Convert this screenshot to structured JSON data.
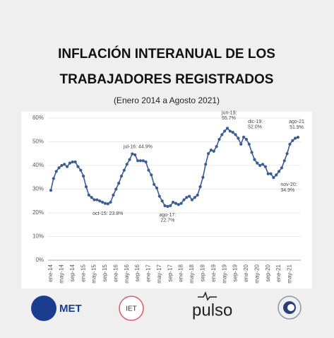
{
  "chart_data": {
    "type": "line",
    "title_lines": [
      "INFLACIÓN INTERANUAL DE LOS",
      "TRABAJADORES REGISTRADOS"
    ],
    "subtitle": "(Enero 2014 a Agosto 2021)",
    "categories": [
      "ene-14",
      null,
      null,
      null,
      "may-14",
      null,
      null,
      null,
      "sep-14",
      null,
      null,
      null,
      "ene-15",
      null,
      null,
      null,
      "may-15",
      null,
      null,
      null,
      "sep-15",
      null,
      null,
      null,
      "ene-16",
      null,
      null,
      null,
      "may-16",
      null,
      null,
      null,
      "sep-16",
      null,
      null,
      null,
      "ene-17",
      null,
      null,
      null,
      "may-17",
      null,
      null,
      null,
      "sep-17",
      null,
      null,
      null,
      "ene-18",
      null,
      null,
      null,
      "may-18",
      null,
      null,
      null,
      "sep-18",
      null,
      null,
      null,
      "ene-19",
      null,
      null,
      null,
      "may-19",
      null,
      null,
      null,
      "sep-19",
      null,
      null,
      null,
      "ene-20",
      null,
      null,
      null,
      "may-20",
      null,
      null,
      null,
      "sep-20",
      null,
      null,
      null,
      "ene-21",
      null,
      null,
      null,
      "may-21",
      null,
      null,
      null
    ],
    "series": [
      {
        "color": "#3b5b96",
        "values": [
          29.5,
          34.5,
          37.5,
          39,
          40,
          40.5,
          39.5,
          41,
          41.5,
          41.5,
          39.5,
          38,
          35.5,
          31,
          27.5,
          26.5,
          25.5,
          25.5,
          25,
          24.5,
          24,
          23.8,
          24.5,
          27.5,
          30,
          32.5,
          35.5,
          38,
          40.5,
          42.5,
          44.9,
          44.5,
          42,
          42,
          42,
          41.5,
          38,
          36,
          32,
          30.5,
          27,
          25,
          23,
          22.7,
          23,
          24.5,
          24,
          23.5,
          24,
          25.5,
          26.5,
          27,
          25.5,
          26.5,
          27.5,
          31,
          35,
          40.5,
          45,
          46.5,
          46,
          48,
          51,
          53,
          54.5,
          55.7,
          54.5,
          54,
          53,
          51.5,
          49,
          52.0,
          51,
          49,
          45.5,
          42.5,
          41,
          40,
          40.5,
          39.5,
          36.5,
          36.5,
          34.9,
          36,
          37.5,
          39,
          42,
          45,
          49,
          50.5,
          51.5,
          51.9
        ],
        "value_labels": [
          null,
          null,
          null,
          null,
          null,
          null,
          null,
          null,
          null,
          null,
          null,
          null,
          null,
          null,
          null,
          null,
          null,
          null,
          null,
          null,
          null,
          "oct-15: 23.8%",
          null,
          null,
          null,
          null,
          null,
          null,
          null,
          null,
          "jul-16: 44.9%",
          null,
          null,
          null,
          null,
          null,
          null,
          null,
          null,
          null,
          null,
          null,
          null,
          "ago-17:\n22.7%",
          null,
          null,
          null,
          null,
          null,
          null,
          null,
          null,
          null,
          null,
          null,
          null,
          null,
          null,
          null,
          null,
          null,
          null,
          null,
          null,
          null,
          "jun-19:\n55.7%",
          null,
          null,
          null,
          null,
          null,
          "dic-19:\n52.0%",
          null,
          null,
          null,
          null,
          null,
          null,
          null,
          null,
          null,
          null,
          "nov-20:\n34.9%",
          null,
          null,
          null,
          null,
          null,
          null,
          null,
          null,
          "ago-21\n51.9%"
        ]
      }
    ],
    "ylim": [
      0,
      60
    ],
    "yticks": [
      {
        "value": 0,
        "label": "0%"
      },
      {
        "value": 10,
        "label": "10%"
      },
      {
        "value": 20,
        "label": "20%"
      },
      {
        "value": 30,
        "label": "30%"
      },
      {
        "value": 40,
        "label": "40%"
      },
      {
        "value": 50,
        "label": "50%"
      },
      {
        "value": 60,
        "label": "60%"
      }
    ],
    "grid": true
  },
  "logos": [
    "MET",
    "IET",
    "pulso"
  ]
}
